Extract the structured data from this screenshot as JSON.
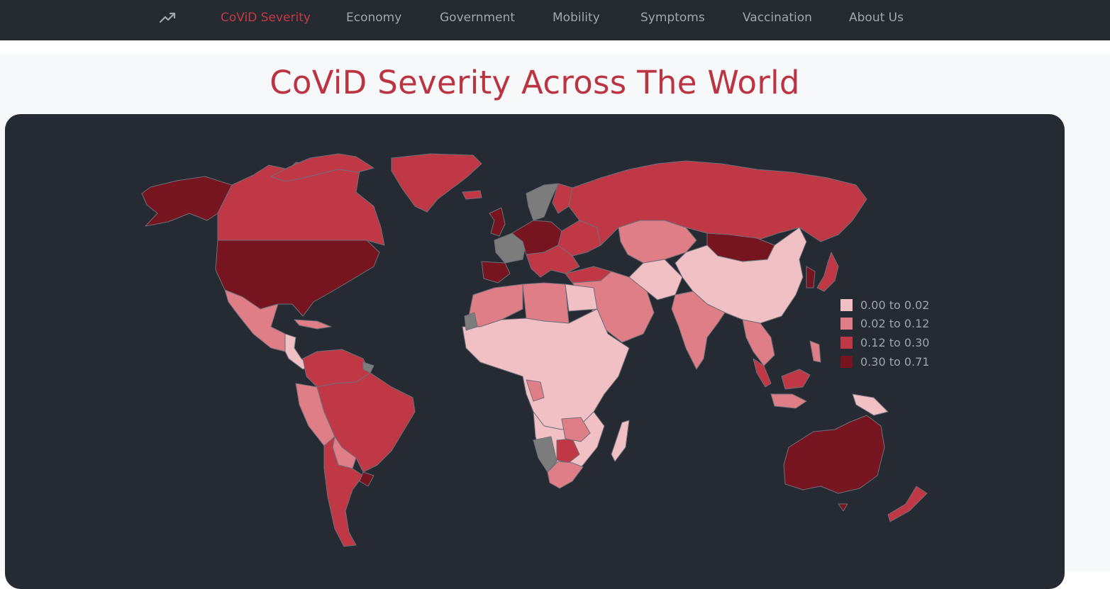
{
  "nav": {
    "brand_icon": "trending-up-icon",
    "items": [
      {
        "label": "CoViD Severity",
        "active": true
      },
      {
        "label": "Economy",
        "active": false
      },
      {
        "label": "Government",
        "active": false
      },
      {
        "label": "Mobility",
        "active": false
      },
      {
        "label": "Symptoms",
        "active": false
      },
      {
        "label": "Vaccination",
        "active": false
      },
      {
        "label": "About Us",
        "active": false
      }
    ]
  },
  "page": {
    "title": "CoViD Severity Across The World"
  },
  "map": {
    "legend": [
      {
        "label": "0.00 to 0.02",
        "color": "#f1c0c5"
      },
      {
        "label": "0.02 to 0.12",
        "color": "#e07e87"
      },
      {
        "label": "0.12 to 0.30",
        "color": "#c03745"
      },
      {
        "label": "0.30 to 0.71",
        "color": "#76151f"
      }
    ],
    "no_data_color": "#7c7c7c"
  }
}
